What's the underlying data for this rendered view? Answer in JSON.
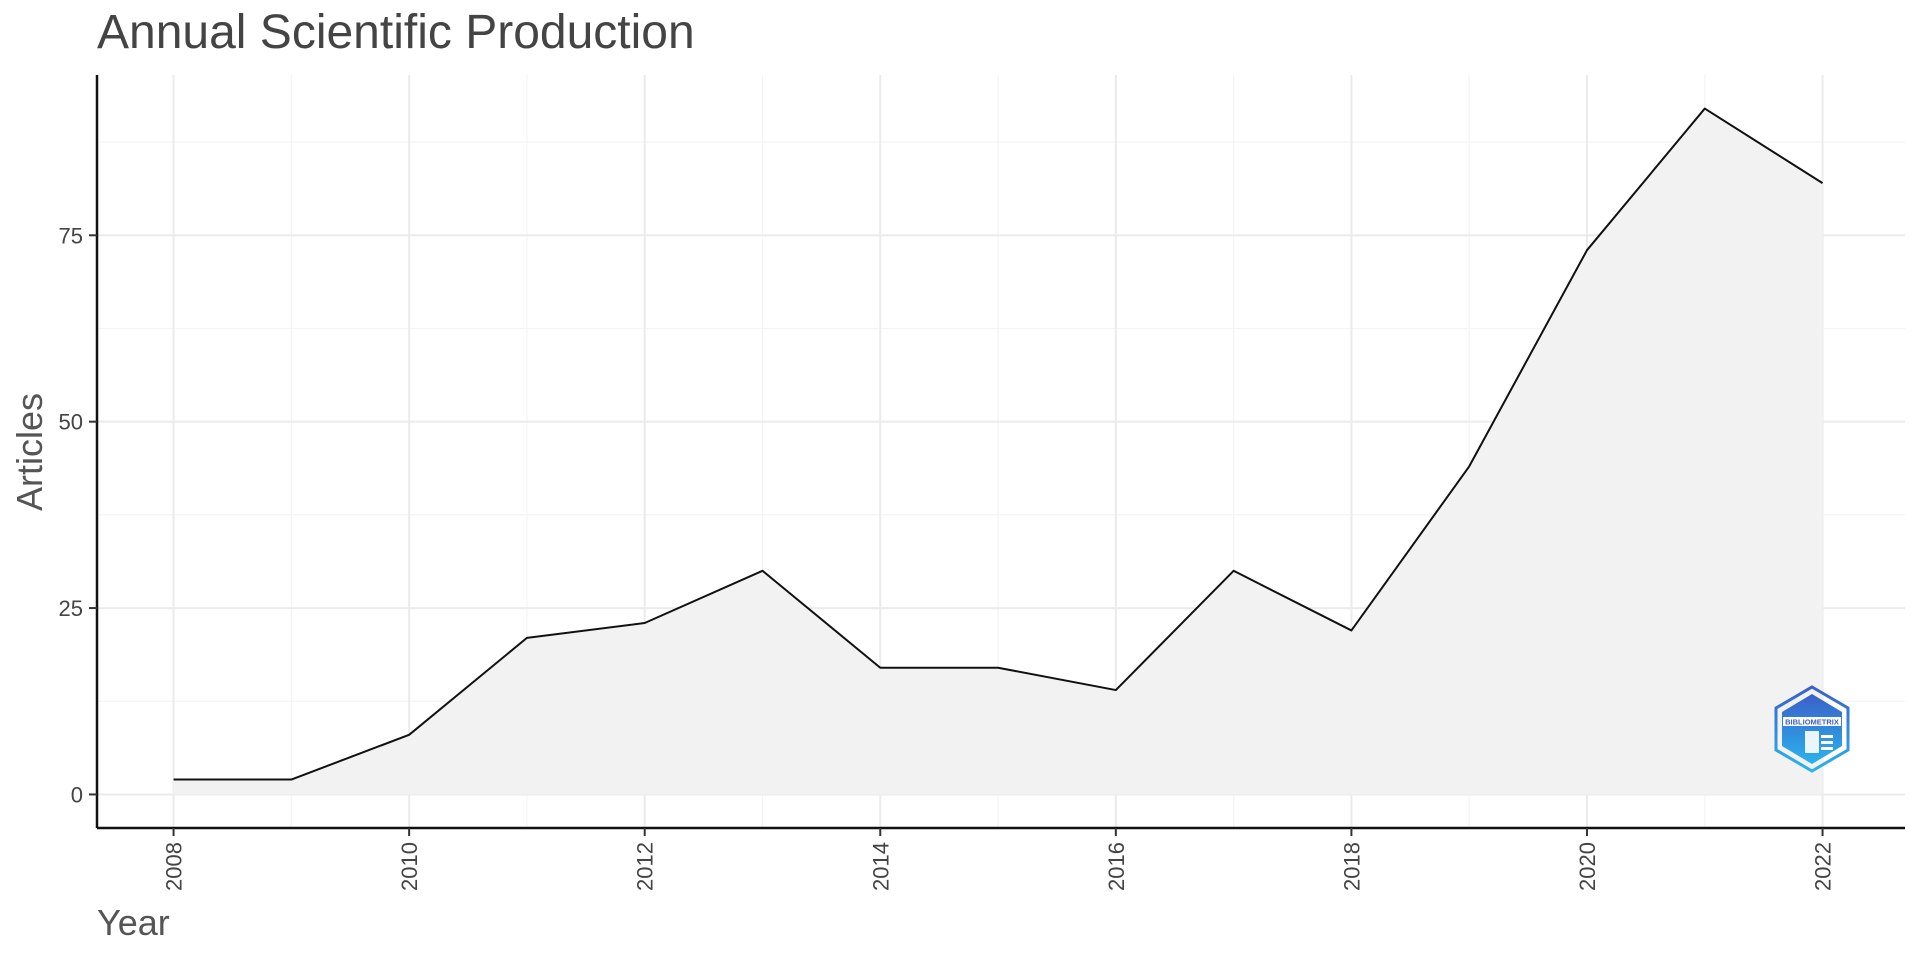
{
  "chart_data": {
    "type": "area",
    "title": "Annual Scientific Production",
    "xlabel": "Year",
    "ylabel": "Articles",
    "x": [
      2008,
      2009,
      2010,
      2011,
      2012,
      2013,
      2014,
      2015,
      2016,
      2017,
      2018,
      2019,
      2020,
      2021,
      2022
    ],
    "values": [
      2,
      2,
      8,
      21,
      23,
      30,
      17,
      17,
      14,
      30,
      22,
      44,
      73,
      92,
      82
    ],
    "xlim": [
      2007.35,
      2022.7
    ],
    "ylim": [
      -4.5,
      96.5
    ],
    "xticks": [
      2008,
      2010,
      2012,
      2014,
      2016,
      2018,
      2020,
      2022
    ],
    "yticks": [
      0,
      25,
      50,
      75
    ],
    "grid": true,
    "colors": {
      "line": "#111111",
      "fill": "#f2f2f2",
      "grid": "#ebebeb"
    }
  },
  "watermark": {
    "text": "BIBLIOMETRIX",
    "icon": "bibliometrix-logo-icon",
    "colors": [
      "#3b5fc8",
      "#2ab3ee"
    ]
  }
}
